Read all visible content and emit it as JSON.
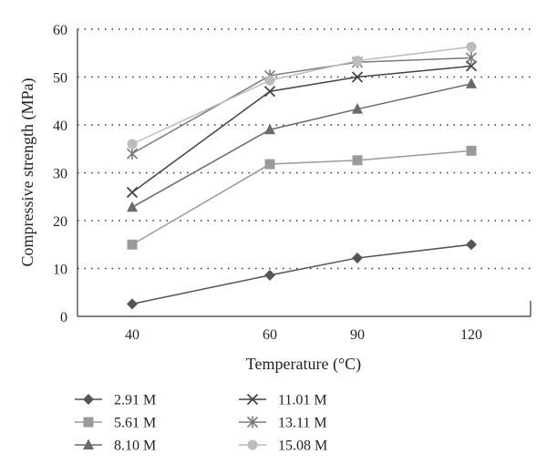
{
  "chart_data": {
    "type": "line",
    "title": "",
    "xlabel": "Temperature (°C)",
    "ylabel": "Compressive strength (MPa)",
    "categories": [
      "40",
      "60",
      "90",
      "120"
    ],
    "ylim": [
      0,
      60
    ],
    "yticks": [
      "0",
      "10",
      "20",
      "30",
      "40",
      "50",
      "60"
    ],
    "grid": true,
    "legend_position": "bottom",
    "series": [
      {
        "name": "2.91 M",
        "values": [
          2.6,
          8.6,
          12.2,
          15.0
        ],
        "marker": "diamond",
        "color": "#555555"
      },
      {
        "name": "5.61 M",
        "values": [
          15.0,
          31.8,
          32.6,
          34.6
        ],
        "marker": "square",
        "color": "#9a9a9a"
      },
      {
        "name": "8.10 M",
        "values": [
          22.8,
          39.0,
          43.3,
          48.6
        ],
        "marker": "triangle",
        "color": "#6a6a6a"
      },
      {
        "name": "11.01 M",
        "values": [
          25.9,
          47.0,
          50.0,
          52.3
        ],
        "marker": "x",
        "color": "#444444"
      },
      {
        "name": "13.11 M",
        "values": [
          34.0,
          50.3,
          53.1,
          54.0
        ],
        "marker": "star",
        "color": "#7a7a7a"
      },
      {
        "name": "15.08 M",
        "values": [
          36.0,
          49.3,
          53.4,
          56.3
        ],
        "marker": "circle",
        "color": "#bcbcbc"
      }
    ]
  }
}
